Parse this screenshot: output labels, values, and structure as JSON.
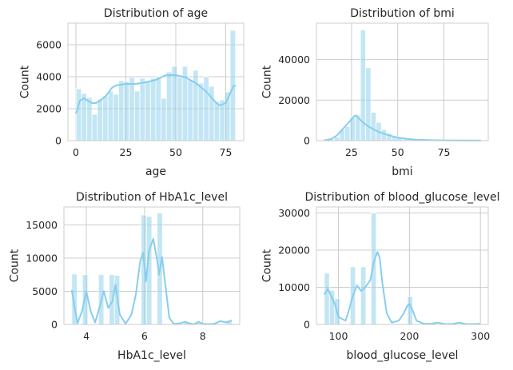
{
  "chart_data": [
    {
      "type": "histogram",
      "title": "Distribution of age",
      "xlabel": "age",
      "ylabel": "Count",
      "xlim": [
        -4,
        84
      ],
      "ylim": [
        0,
        7350
      ],
      "xticks": [
        0,
        25,
        50,
        75
      ],
      "yticks": [
        0,
        2000,
        4000,
        6000
      ],
      "grid": true,
      "color": "#87ceeb",
      "bins": {
        "start": 0.08,
        "width": 2.66,
        "counts": [
          3250,
          2950,
          2700,
          1650,
          2600,
          2800,
          3100,
          2900,
          3750,
          3700,
          3950,
          3100,
          3900,
          3750,
          3900,
          4000,
          2650,
          4300,
          4650,
          3950,
          4650,
          3800,
          4400,
          3600,
          4000,
          3400,
          2450,
          2550,
          3050,
          6900
        ]
      },
      "kde": {
        "x": [
          0,
          2,
          4,
          6,
          8,
          10,
          12,
          15,
          18,
          20,
          25,
          30,
          35,
          40,
          45,
          50,
          55,
          60,
          65,
          70,
          72,
          75,
          77,
          79,
          80
        ],
        "y": [
          1700,
          2500,
          2650,
          2500,
          2350,
          2350,
          2500,
          2800,
          3300,
          3450,
          3550,
          3550,
          3650,
          3800,
          4100,
          4100,
          3950,
          3600,
          3100,
          2400,
          2200,
          2350,
          2900,
          3450,
          3400
        ]
      }
    },
    {
      "type": "histogram",
      "title": "Distribution of bmi",
      "xlabel": "bmi",
      "ylabel": "Count",
      "xlim": [
        6,
        99
      ],
      "ylim": [
        0,
        58000
      ],
      "xticks": [
        25,
        50,
        75
      ],
      "yticks": [
        0,
        20000,
        40000
      ],
      "grid": true,
      "color": "#87ceeb",
      "bins": {
        "start": 10.0,
        "width": 2.83,
        "counts": [
          300,
          700,
          1800,
          5500,
          7000,
          11500,
          12500,
          54700,
          36000,
          14000,
          9000,
          5500,
          3600,
          2200,
          1300,
          800,
          500,
          300,
          200,
          150,
          100,
          80,
          60,
          40,
          30,
          20,
          15,
          10,
          5,
          5
        ]
      },
      "kde": {
        "x": [
          10,
          14,
          17,
          20,
          22,
          24,
          25.5,
          26.5,
          27.5,
          28.5,
          30,
          32,
          35,
          40,
          45,
          50,
          55,
          60,
          70,
          80,
          95
        ],
        "y": [
          100,
          800,
          2500,
          5500,
          7500,
          9500,
          11000,
          12200,
          12500,
          11500,
          10000,
          8500,
          6500,
          4200,
          2700,
          1500,
          900,
          500,
          200,
          80,
          20
        ]
      }
    },
    {
      "type": "histogram",
      "title": "Distribution of HbA1c_level",
      "xlabel": "HbA1c_level",
      "ylabel": "Count",
      "xlim": [
        3.23,
        9.27
      ],
      "ylim": [
        0,
        17700
      ],
      "xticks": [
        4,
        6,
        8
      ],
      "yticks": [
        0,
        5000,
        10000,
        15000
      ],
      "grid": true,
      "color": "#87ceeb",
      "bins": {
        "start": 3.5,
        "width": 0.1833,
        "counts": [
          7600,
          0,
          7500,
          0,
          0,
          7500,
          0,
          7500,
          7400,
          0,
          0,
          0,
          0,
          16500,
          16300,
          0,
          16800,
          0,
          0,
          0,
          0,
          300,
          0,
          300,
          0,
          0,
          300,
          0,
          0,
          600
        ]
      },
      "kde": {
        "x": [
          3.5,
          3.6,
          3.7,
          3.85,
          4.0,
          4.15,
          4.3,
          4.45,
          4.6,
          4.75,
          4.9,
          5.0,
          5.15,
          5.35,
          5.55,
          5.7,
          5.85,
          5.95,
          6.05,
          6.15,
          6.3,
          6.42,
          6.5,
          6.6,
          6.7,
          6.85,
          7.0,
          7.2,
          7.4,
          7.55,
          7.7,
          7.85,
          8.0,
          8.2,
          8.4,
          8.6,
          8.8,
          9.0
        ],
        "y": [
          5200,
          2500,
          200,
          2000,
          5000,
          2000,
          300,
          2500,
          5000,
          2500,
          3500,
          6000,
          1500,
          100,
          1500,
          4500,
          9500,
          10800,
          6500,
          11000,
          12900,
          10000,
          7500,
          10200,
          6500,
          1000,
          100,
          150,
          400,
          150,
          50,
          400,
          100,
          50,
          100,
          500,
          300,
          600
        ]
      }
    },
    {
      "type": "histogram",
      "title": "Distribution of blood_glucose_level",
      "xlabel": "blood_glucose_level",
      "ylabel": "Count",
      "xlim": [
        69,
        311
      ],
      "ylim": [
        0,
        31600
      ],
      "xticks": [
        100,
        200,
        300
      ],
      "yticks": [
        0,
        10000,
        20000,
        30000
      ],
      "grid": true,
      "color": "#87ceeb",
      "bins": {
        "start": 80,
        "width": 7.33,
        "counts": [
          13800,
          9200,
          7000,
          0,
          0,
          15500,
          0,
          15500,
          0,
          30000,
          0,
          0,
          0,
          0,
          0,
          0,
          7500,
          0,
          0,
          0,
          0,
          0,
          0,
          0,
          0,
          0,
          0,
          0,
          0,
          0
        ]
      },
      "kde": {
        "x": [
          80,
          85,
          90,
          95,
          100,
          105,
          110,
          115,
          120,
          126,
          132,
          138,
          145,
          150,
          155,
          158,
          162,
          168,
          175,
          185,
          192,
          197,
          200,
          204,
          210,
          220,
          230,
          240,
          250,
          260,
          270,
          280,
          290,
          300
        ],
        "y": [
          8000,
          9600,
          7500,
          5500,
          2000,
          1500,
          1000,
          4000,
          7500,
          10500,
          9000,
          10000,
          12000,
          17000,
          19500,
          18000,
          11000,
          3000,
          500,
          1000,
          3000,
          5000,
          5500,
          4000,
          1000,
          200,
          200,
          500,
          100,
          100,
          500,
          100,
          100,
          200
        ]
      }
    }
  ]
}
